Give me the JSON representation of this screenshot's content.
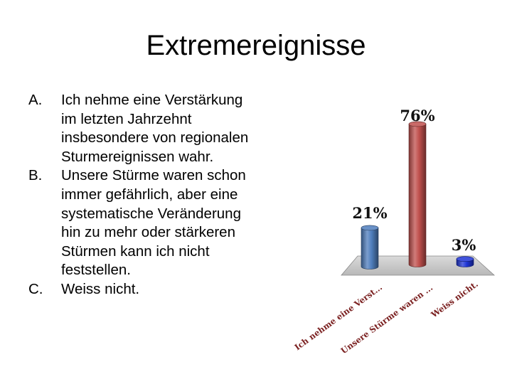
{
  "slide": {
    "title": "Extremereignisse"
  },
  "options": [
    {
      "letter": "A.",
      "text": "Ich nehme eine Verstärkung im letzten Jahrzehnt insbesondere von regionalen Sturmereignissen wahr."
    },
    {
      "letter": "B.",
      "text": "Unsere Stürme waren schon immer gefährlich, aber eine systematische Veränderung hin zu mehr oder stärkeren Stürmen kann ich nicht feststellen."
    },
    {
      "letter": "C.",
      "text": "Weiss nicht."
    }
  ],
  "chart_data": {
    "type": "bar",
    "style": "3d-cylinder",
    "categories": [
      "Ich nehme eine Verst...",
      "Unsere Stürme waren ...",
      "Weiss nicht."
    ],
    "values": [
      21,
      76,
      3
    ],
    "value_labels": [
      "21%",
      "76%",
      "3%"
    ],
    "ylim": [
      0,
      80
    ],
    "grid": false,
    "legend": "none",
    "colors": [
      "#4f7ebd",
      "#c0504d",
      "#1f35d6"
    ],
    "floor_color": "#c9c9c9"
  }
}
